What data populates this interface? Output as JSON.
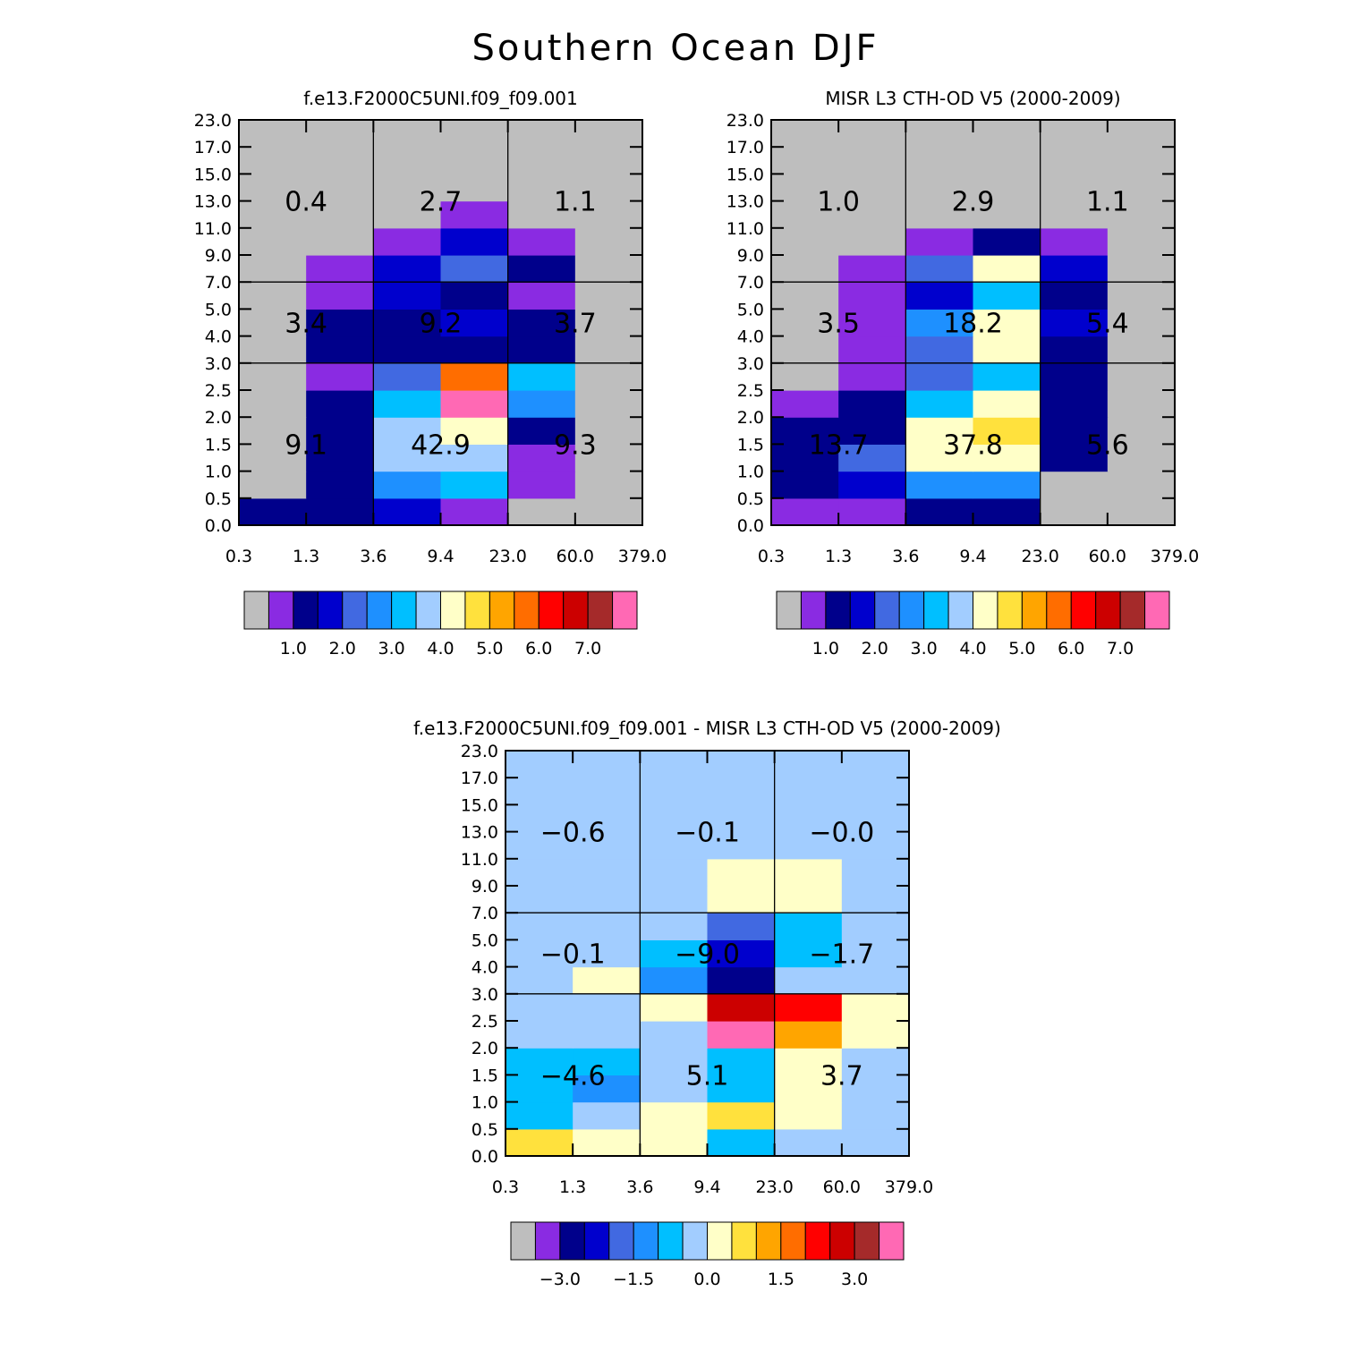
{
  "title": "Southern Ocean DJF",
  "colors": {
    "absolute_palette": [
      "#bebebe",
      "#8a2be2",
      "#00008b",
      "#0000cd",
      "#4169e1",
      "#1e90ff",
      "#00bfff",
      "#a2cdff",
      "#ffffc8",
      "#ffe13d",
      "#ffa500",
      "#ff6d00",
      "#ff0000",
      "#cc0000",
      "#a52a2a",
      "#ff69b4"
    ],
    "difference_palette": [
      "#bebebe",
      "#8a2be2",
      "#00008b",
      "#0000cd",
      "#4169e1",
      "#1e90ff",
      "#00bfff",
      "#a2cdff",
      "#ffffc8",
      "#ffe13d",
      "#ffa500",
      "#ff6d00",
      "#ff0000",
      "#cc0000",
      "#a52a2a",
      "#ff69b4"
    ]
  },
  "chart_data": [
    {
      "type": "heatmap",
      "title": "f.e13.F2000C5UNI.f09_f09.001",
      "x_ticks": [
        "0.3",
        "1.3",
        "3.6",
        "9.4",
        "23.0",
        "60.0",
        "379.0"
      ],
      "y_ticks": [
        "0.0",
        "0.5",
        "1.0",
        "1.5",
        "2.0",
        "2.5",
        "3.0",
        "4.0",
        "5.0",
        "7.0",
        "9.0",
        "11.0",
        "13.0",
        "15.0",
        "17.0",
        "23.0"
      ],
      "cells": [
        [
          2,
          2,
          3,
          1,
          0,
          0
        ],
        [
          0,
          2,
          5,
          6,
          1,
          0
        ],
        [
          0,
          2,
          7,
          7,
          1,
          0
        ],
        [
          0,
          2,
          7,
          8,
          2,
          0
        ],
        [
          0,
          2,
          6,
          15,
          5,
          0
        ],
        [
          0,
          1,
          4,
          11,
          6,
          0
        ],
        [
          0,
          2,
          2,
          2,
          2,
          0
        ],
        [
          0,
          2,
          2,
          3,
          2,
          0
        ],
        [
          0,
          1,
          3,
          2,
          1,
          0
        ],
        [
          0,
          1,
          3,
          4,
          2,
          0
        ],
        [
          0,
          0,
          1,
          3,
          1,
          0
        ],
        [
          0,
          0,
          0,
          1,
          0,
          0
        ],
        [
          0,
          0,
          0,
          0,
          0,
          0
        ],
        [
          0,
          0,
          0,
          0,
          0,
          0
        ],
        [
          0,
          0,
          0,
          0,
          0,
          0
        ]
      ],
      "box_values": [
        [
          {
            "label": "9.1",
            "row": "low",
            "col": "left"
          },
          {
            "label": "42.9",
            "row": "low",
            "col": "mid"
          },
          {
            "label": "9.3",
            "row": "low",
            "col": "right"
          }
        ],
        [
          {
            "label": "3.4",
            "row": "mid",
            "col": "left"
          },
          {
            "label": "9.2",
            "row": "mid",
            "col": "mid"
          },
          {
            "label": "3.7",
            "row": "mid",
            "col": "right"
          }
        ],
        [
          {
            "label": "0.4",
            "row": "high",
            "col": "left"
          },
          {
            "label": "2.7",
            "row": "high",
            "col": "mid"
          },
          {
            "label": "1.1",
            "row": "high",
            "col": "right"
          }
        ]
      ],
      "colorbar_labels": [
        "1.0",
        "2.0",
        "3.0",
        "4.0",
        "5.0",
        "6.0",
        "7.0"
      ]
    },
    {
      "type": "heatmap",
      "title": "MISR L3 CTH-OD V5 (2000-2009)",
      "x_ticks": [
        "0.3",
        "1.3",
        "3.6",
        "9.4",
        "23.0",
        "60.0",
        "379.0"
      ],
      "y_ticks": [
        "0.0",
        "0.5",
        "1.0",
        "1.5",
        "2.0",
        "2.5",
        "3.0",
        "4.0",
        "5.0",
        "7.0",
        "9.0",
        "11.0",
        "13.0",
        "15.0",
        "17.0",
        "23.0"
      ],
      "cells": [
        [
          1,
          1,
          2,
          2,
          0,
          0
        ],
        [
          2,
          3,
          5,
          5,
          0,
          0
        ],
        [
          2,
          4,
          8,
          8,
          2,
          0
        ],
        [
          2,
          2,
          8,
          9,
          2,
          0
        ],
        [
          1,
          2,
          6,
          8,
          2,
          0
        ],
        [
          0,
          1,
          4,
          6,
          2,
          0
        ],
        [
          0,
          1,
          4,
          8,
          2,
          0
        ],
        [
          0,
          1,
          5,
          8,
          3,
          0
        ],
        [
          0,
          1,
          3,
          6,
          2,
          0
        ],
        [
          0,
          1,
          4,
          8,
          3,
          0
        ],
        [
          0,
          0,
          1,
          2,
          1,
          0
        ],
        [
          0,
          0,
          0,
          0,
          0,
          0
        ],
        [
          0,
          0,
          0,
          0,
          0,
          0
        ],
        [
          0,
          0,
          0,
          0,
          0,
          0
        ],
        [
          0,
          0,
          0,
          0,
          0,
          0
        ]
      ],
      "box_values": [
        [
          {
            "label": "13.7",
            "row": "low",
            "col": "left"
          },
          {
            "label": "37.8",
            "row": "low",
            "col": "mid"
          },
          {
            "label": "5.6",
            "row": "low",
            "col": "right"
          }
        ],
        [
          {
            "label": "3.5",
            "row": "mid",
            "col": "left"
          },
          {
            "label": "18.2",
            "row": "mid",
            "col": "mid"
          },
          {
            "label": "5.4",
            "row": "mid",
            "col": "right"
          }
        ],
        [
          {
            "label": "1.0",
            "row": "high",
            "col": "left"
          },
          {
            "label": "2.9",
            "row": "high",
            "col": "mid"
          },
          {
            "label": "1.1",
            "row": "high",
            "col": "right"
          }
        ]
      ],
      "colorbar_labels": [
        "1.0",
        "2.0",
        "3.0",
        "4.0",
        "5.0",
        "6.0",
        "7.0"
      ]
    },
    {
      "type": "heatmap",
      "title": "f.e13.F2000C5UNI.f09_f09.001 - MISR L3 CTH-OD V5 (2000-2009)",
      "x_ticks": [
        "0.3",
        "1.3",
        "3.6",
        "9.4",
        "23.0",
        "60.0",
        "379.0"
      ],
      "y_ticks": [
        "0.0",
        "0.5",
        "1.0",
        "1.5",
        "2.0",
        "2.5",
        "3.0",
        "4.0",
        "5.0",
        "7.0",
        "9.0",
        "11.0",
        "13.0",
        "15.0",
        "17.0",
        "23.0"
      ],
      "cells": [
        [
          9,
          8,
          8,
          6,
          7,
          7
        ],
        [
          6,
          7,
          8,
          9,
          8,
          7
        ],
        [
          6,
          5,
          7,
          6,
          8,
          7
        ],
        [
          6,
          6,
          7,
          6,
          8,
          7
        ],
        [
          7,
          7,
          7,
          15,
          10,
          8
        ],
        [
          7,
          7,
          8,
          13,
          12,
          8
        ],
        [
          7,
          8,
          5,
          2,
          7,
          7
        ],
        [
          7,
          7,
          6,
          3,
          6,
          7
        ],
        [
          7,
          7,
          7,
          4,
          6,
          7
        ],
        [
          7,
          7,
          7,
          8,
          8,
          7
        ],
        [
          7,
          7,
          7,
          8,
          8,
          7
        ],
        [
          7,
          7,
          7,
          7,
          7,
          7
        ],
        [
          7,
          7,
          7,
          7,
          7,
          7
        ],
        [
          7,
          7,
          7,
          7,
          7,
          7
        ],
        [
          7,
          7,
          7,
          7,
          7,
          7
        ]
      ],
      "box_values": [
        [
          {
            "label": "-4.6",
            "row": "low",
            "col": "left"
          },
          {
            "label": "5.1",
            "row": "low",
            "col": "mid"
          },
          {
            "label": "3.7",
            "row": "low",
            "col": "right"
          }
        ],
        [
          {
            "label": "-0.1",
            "row": "mid",
            "col": "left"
          },
          {
            "label": "-9.0",
            "row": "mid",
            "col": "mid"
          },
          {
            "label": "-1.7",
            "row": "mid",
            "col": "right"
          }
        ],
        [
          {
            "label": "-0.6",
            "row": "high",
            "col": "left"
          },
          {
            "label": "-0.1",
            "row": "high",
            "col": "mid"
          },
          {
            "label": "-0.0",
            "row": "high",
            "col": "right"
          }
        ]
      ],
      "colorbar_labels": [
        "-3.0",
        "-1.5",
        "0.0",
        "1.5",
        "3.0"
      ]
    }
  ]
}
